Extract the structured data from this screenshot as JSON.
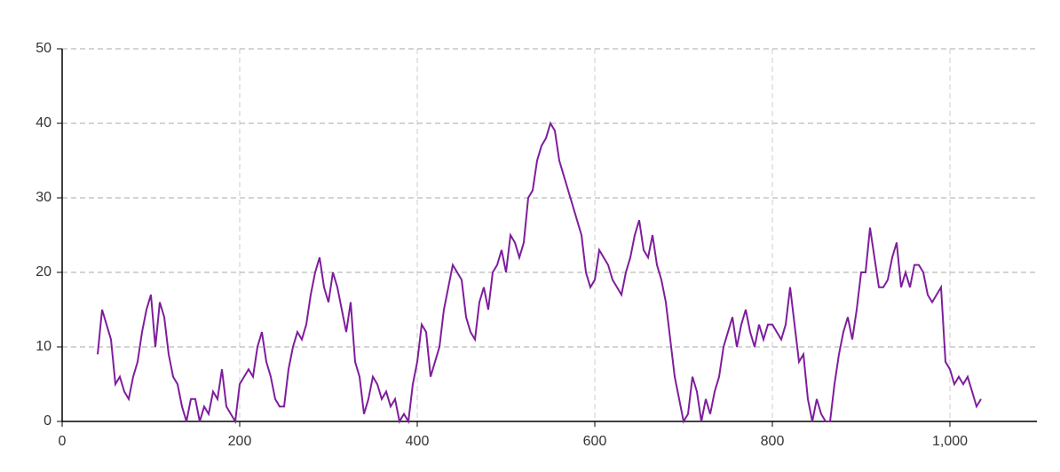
{
  "chart_data": {
    "type": "line",
    "x": [
      40,
      45,
      50,
      55,
      60,
      65,
      70,
      75,
      80,
      85,
      90,
      95,
      100,
      105,
      110,
      115,
      120,
      125,
      130,
      135,
      140,
      145,
      150,
      155,
      160,
      165,
      170,
      175,
      180,
      185,
      190,
      195,
      200,
      205,
      210,
      215,
      220,
      225,
      230,
      235,
      240,
      245,
      250,
      255,
      260,
      265,
      270,
      275,
      280,
      285,
      290,
      295,
      300,
      305,
      310,
      315,
      320,
      325,
      330,
      335,
      340,
      345,
      350,
      355,
      360,
      365,
      370,
      375,
      380,
      385,
      390,
      395,
      400,
      405,
      410,
      415,
      420,
      425,
      430,
      435,
      440,
      445,
      450,
      455,
      460,
      465,
      470,
      475,
      480,
      485,
      490,
      495,
      500,
      505,
      510,
      515,
      520,
      525,
      530,
      535,
      540,
      545,
      550,
      555,
      560,
      565,
      570,
      575,
      580,
      585,
      590,
      595,
      600,
      605,
      610,
      615,
      620,
      625,
      630,
      635,
      640,
      645,
      650,
      655,
      660,
      665,
      670,
      675,
      680,
      685,
      690,
      695,
      700,
      705,
      710,
      715,
      720,
      725,
      730,
      735,
      740,
      745,
      750,
      755,
      760,
      765,
      770,
      775,
      780,
      785,
      790,
      795,
      800,
      805,
      810,
      815,
      820,
      825,
      830,
      835,
      840,
      845,
      850,
      855,
      860,
      865,
      870,
      875,
      880,
      885,
      890,
      895,
      900,
      905,
      910,
      915,
      920,
      925,
      930,
      935,
      940,
      945,
      950,
      955,
      960,
      965,
      970,
      975,
      980,
      985,
      990,
      995,
      1000,
      1005,
      1010,
      1015,
      1020,
      1025,
      1030,
      1035
    ],
    "series": [
      {
        "color": "#7e1e9c",
        "values": [
          9,
          15,
          13,
          11,
          5,
          6,
          4,
          3,
          6,
          8,
          12,
          15,
          17,
          10,
          16,
          14,
          9,
          6,
          5,
          2,
          0,
          3,
          3,
          0,
          2,
          1,
          4,
          3,
          7,
          2,
          1,
          0,
          5,
          6,
          7,
          6,
          10,
          12,
          8,
          6,
          3,
          2,
          2,
          7,
          10,
          12,
          11,
          13,
          17,
          20,
          22,
          18,
          16,
          20,
          18,
          15,
          12,
          16,
          8,
          6,
          1,
          3,
          6,
          5,
          3,
          4,
          2,
          3,
          0,
          1,
          0,
          5,
          8,
          13,
          12,
          6,
          8,
          10,
          15,
          18,
          21,
          20,
          19,
          14,
          12,
          11,
          16,
          18,
          15,
          20,
          21,
          23,
          20,
          25,
          24,
          22,
          24,
          30,
          31,
          35,
          37,
          38,
          40,
          39,
          35,
          33,
          31,
          29,
          27,
          25,
          20,
          18,
          19,
          23,
          22,
          21,
          19,
          18,
          17,
          20,
          22,
          25,
          27,
          23,
          22,
          25,
          21,
          19,
          16,
          11,
          6,
          3,
          0,
          1,
          6,
          4,
          0,
          3,
          1,
          4,
          6,
          10,
          12,
          14,
          10,
          13,
          15,
          12,
          10,
          13,
          11,
          13,
          13,
          12,
          11,
          13,
          18,
          13,
          8,
          9,
          3,
          0,
          3,
          1,
          0,
          0,
          5,
          9,
          12,
          14,
          11,
          15,
          20,
          20,
          26,
          22,
          18,
          18,
          19,
          22,
          24,
          18,
          20,
          18,
          21,
          21,
          20,
          17,
          16,
          17,
          18,
          8,
          7,
          5,
          6,
          5,
          6,
          4,
          2,
          3
        ]
      }
    ],
    "xlim": [
      0,
      1098
    ],
    "ylim": [
      0,
      50
    ],
    "xticks": [
      0,
      200,
      400,
      600,
      800,
      {
        "value": 1000,
        "label": "1,000"
      }
    ],
    "yticks": [
      0,
      10,
      20,
      30,
      40,
      50
    ],
    "grid": true
  }
}
